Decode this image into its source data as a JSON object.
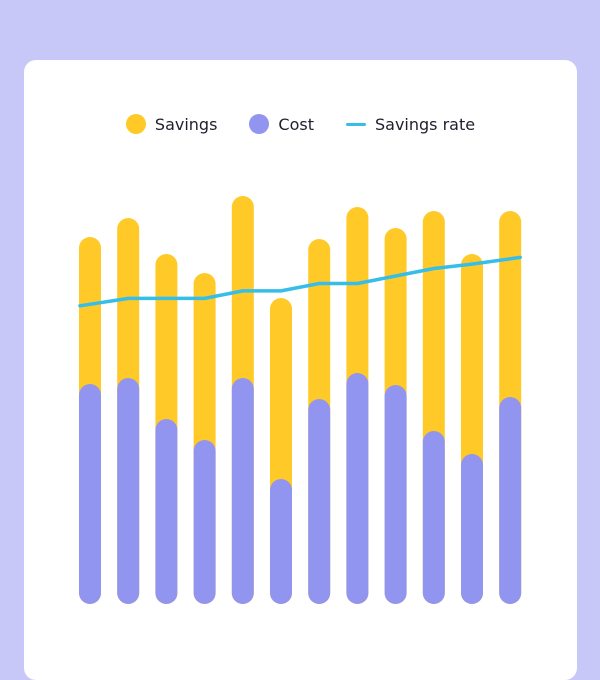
{
  "chart_data": {
    "type": "bar",
    "stacked": true,
    "categories": [
      "",
      "",
      "",
      "",
      "",
      "",
      "",
      "",
      "",
      "",
      "",
      ""
    ],
    "series": [
      {
        "name": "Cost",
        "kind": "bar",
        "color": "#9295EF",
        "values": [
          220,
          226,
          185,
          164,
          226,
          125,
          205,
          231,
          219,
          173,
          150,
          207
        ]
      },
      {
        "name": "Savings",
        "kind": "bar",
        "color": "#FFCA28",
        "values": [
          147,
          160,
          165,
          167,
          182,
          181,
          160,
          166,
          157,
          220,
          200,
          186
        ]
      },
      {
        "name": "Savings rate",
        "kind": "line",
        "color": "#36BEE8",
        "values": [
          40,
          41,
          41,
          41,
          42,
          42,
          43,
          43,
          44,
          45,
          45.6,
          46.5
        ]
      }
    ],
    "ylim": [
      0,
      410
    ],
    "y2lim": [
      0,
      55
    ],
    "legend_position": "top-center",
    "grid": false
  },
  "legend": {
    "savings_label": "Savings",
    "cost_label": "Cost",
    "rate_label": "Savings rate"
  },
  "colors": {
    "background": "#C8C8F8",
    "card": "#FFFFFF",
    "savings": "#FFCA28",
    "cost": "#9295EF",
    "rate": "#36BEE8"
  }
}
